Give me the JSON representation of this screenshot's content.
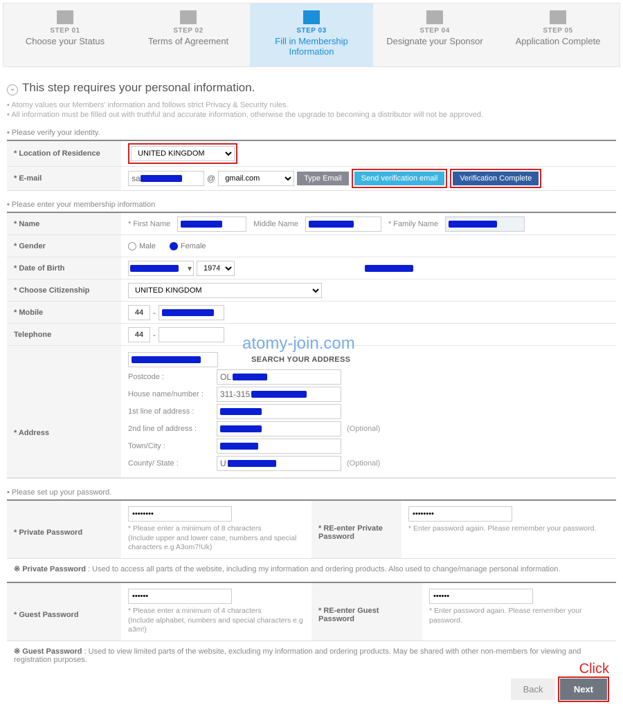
{
  "steps": [
    {
      "num": "STEP 01",
      "label": "Choose your Status"
    },
    {
      "num": "STEP 02",
      "label": "Terms of Agreement"
    },
    {
      "num": "STEP 03",
      "label": "Fill in Membership Information",
      "active": true
    },
    {
      "num": "STEP 04",
      "label": "Designate your Sponsor"
    },
    {
      "num": "STEP 05",
      "label": "Application Complete"
    }
  ],
  "title": "This step requires your personal information.",
  "notes": [
    "Atomy values our Members' information and follows strict Privacy & Security rules.",
    "All information must be filled out with truthful and accurate information, otherwise the upgrade to becoming a distributor will not be approved."
  ],
  "identity": {
    "heading": "Please verify your identity.",
    "location_label": "* Location of Residence",
    "location_value": "UNITED KINGDOM",
    "email_label": "* E-mail",
    "email_prefix": "sa",
    "email_domain": "gmail.com",
    "btn_type": "Type Email",
    "btn_send": "Send verification email",
    "btn_complete": "Verification Complete"
  },
  "membership": {
    "heading": "Please enter your membership information",
    "name_label": "* Name",
    "first": "* First Name",
    "middle": "Middle Name",
    "family": "* Family Name",
    "gender_label": "* Gender",
    "male": "Male",
    "female": "Female",
    "dob_label": "* Date of Birth",
    "dob_year": "1974",
    "citizen_label": "* Choose Citizenship",
    "citizen_value": "UNITED KINGDOM",
    "mobile_label": "* Mobile",
    "mobile_cc": "44",
    "tel_label": "Telephone",
    "tel_cc": "44",
    "addr_label": "* Address",
    "search_addr": "SEARCH YOUR ADDRESS",
    "postcode": "Postcode :",
    "postcode_v": "OL",
    "house": "House name/number :",
    "house_v": "311-315",
    "line1": "1st line of address :",
    "line2": "2nd line of address :",
    "town": "Town/City :",
    "county": "County/ State :",
    "county_v": "U",
    "optional": "(Optional)"
  },
  "watermark": "atomy-join.com",
  "password": {
    "heading": "Please set up your password.",
    "priv_label": "* Private Password",
    "priv_val": "••••••••",
    "priv_hint": "* Please enter a minimum of 8 characters\n(Include upper and lower case, numbers and special characters e.g A3om7!Uk)",
    "priv_re_label": "* RE-enter Private Password",
    "priv_re_val": "••••••••",
    "priv_re_hint": "* Enter password again. Please remember your password.",
    "priv_note_k": "※ Private Password",
    "priv_note": " : Used to access all parts of the website, including my information and ordering products. Also used to change/manage personal information.",
    "guest_label": "* Guest Password",
    "guest_val": "••••••",
    "guest_hint": "* Please enter a minimum of 4 characters\n(Include alphabet, numbers and special characters e.g a3m!)",
    "guest_re_label": "* RE-enter Guest Password",
    "guest_re_val": "••••••",
    "guest_re_hint": "* Enter password again. Please remember your password.",
    "guest_note_k": "※ Guest Password",
    "guest_note": " : Used to view limited parts of the website, excluding my information and ordering products. May be shared with other non-members for viewing and registration purposes."
  },
  "actions": {
    "back": "Back",
    "next": "Next",
    "click": "Click"
  }
}
